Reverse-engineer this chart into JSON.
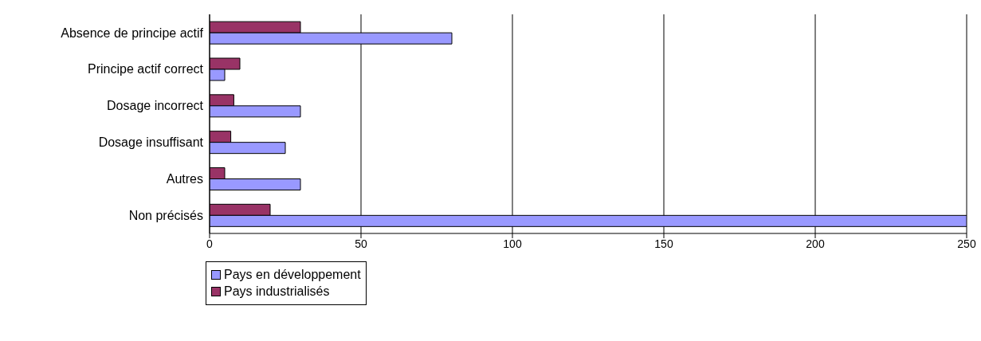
{
  "chart_data": {
    "type": "bar",
    "orientation": "horizontal",
    "categories": [
      "Absence de principe actif",
      "Principe actif correct",
      "Dosage incorrect",
      "Dosage insuffisant",
      "Autres",
      "Non précisés"
    ],
    "series": [
      {
        "name": "Pays en développement",
        "color": "#9999ff",
        "values": [
          80,
          5,
          30,
          25,
          30,
          250
        ]
      },
      {
        "name": "Pays industrialisés",
        "color": "#993366",
        "values": [
          30,
          10,
          8,
          7,
          5,
          20
        ]
      }
    ],
    "xlim": [
      0,
      250
    ],
    "xticks": [
      0,
      50,
      100,
      150,
      200,
      250
    ],
    "grid": "x",
    "legend": "bottom left"
  }
}
